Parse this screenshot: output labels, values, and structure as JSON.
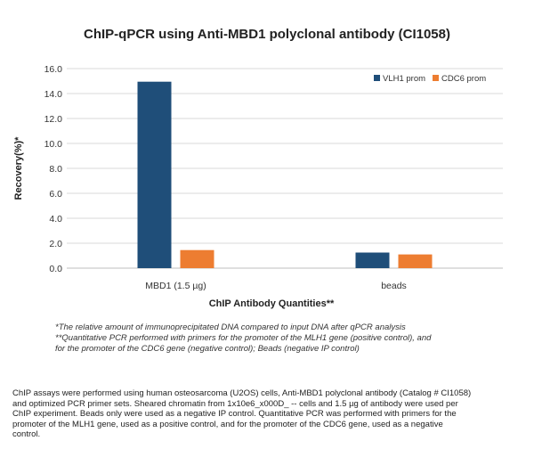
{
  "colors": {
    "vlh1": "#1F4E79",
    "cdc6": "#ED7D31",
    "grid": "#d9d9d9",
    "axis": "#bfbfbf"
  },
  "chart_data": {
    "type": "bar",
    "title": "ChIP-qPCR using Anti-MBD1 polyclonal antibody (CI1058)",
    "xlabel": "ChIP Antibody Quantities**",
    "ylabel": "Recovery(%)*",
    "categories": [
      "MBD1 (1.5 µg)",
      "beads"
    ],
    "series": [
      {
        "name": "VLH1 prom",
        "values": [
          14.95,
          1.25
        ]
      },
      {
        "name": "CDC6 prom",
        "values": [
          1.45,
          1.1
        ]
      }
    ],
    "ylim": [
      0,
      16
    ],
    "yticks": [
      "0.0",
      "2.0",
      "4.0",
      "6.0",
      "8.0",
      "10.0",
      "12.0",
      "14.0",
      "16.0"
    ],
    "grid": true,
    "legend_position": "top-right"
  },
  "footnotes": {
    "line1": "*The relative amount of immunoprecipitated DNA compared to input DNA after qPCR analysis",
    "line2": "**Quantitative PCR performed with primers for the promoter of the MLH1 gene (positive control), and",
    "line3": "for the promoter of the CDC6 gene (negative control); Beads (negative IP control)"
  },
  "caption": {
    "line1": "ChIP assays were performed using human osteosarcoma (U2OS) cells, Anti-MBD1 polyclonal antibody (Catalog # CI1058)",
    "line2": "and optimized PCR primer sets. Sheared chromatin from 1x10e6_x000D_ -- cells and 1.5 µg of antibody were used per",
    "line3": "ChIP experiment. Beads only were used as a negative IP control. Quantitative PCR was performed with primers for the",
    "line4": "promoter of the MLH1 gene, used as a positive control, and for the promoter of the CDC6 gene, used as a negative",
    "line5": "control."
  }
}
